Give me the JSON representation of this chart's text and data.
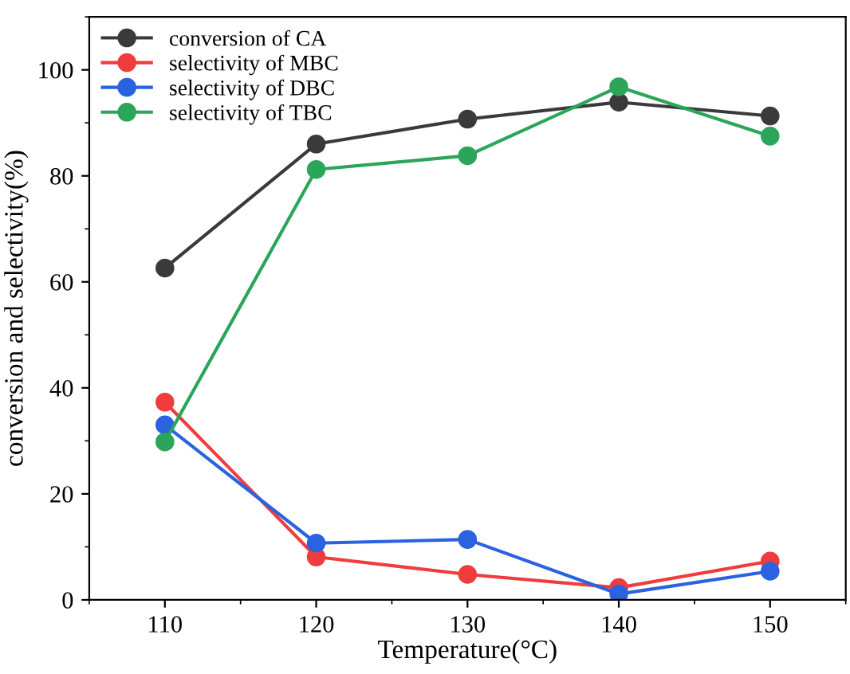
{
  "chart_data": {
    "type": "line",
    "xlabel": "Temperature(°C)",
    "ylabel": "conversion and selectivity(%)",
    "x": [
      110,
      120,
      130,
      140,
      150
    ],
    "series": [
      {
        "name": "conversion of CA",
        "color": "#3a3a3a",
        "values": [
          62.6,
          86.0,
          90.7,
          93.9,
          91.3
        ]
      },
      {
        "name": "selectivity of MBC",
        "color": "#f03c3c",
        "values": [
          37.3,
          8.1,
          4.8,
          2.3,
          7.3
        ]
      },
      {
        "name": "selectivity of DBC",
        "color": "#2a62e0",
        "values": [
          33.0,
          10.7,
          11.4,
          1.1,
          5.4
        ]
      },
      {
        "name": "selectivity of TBC",
        "color": "#2aa55a",
        "values": [
          29.8,
          81.2,
          83.8,
          96.8,
          87.5
        ]
      }
    ],
    "xlim": [
      105,
      155
    ],
    "ylim": [
      0,
      110
    ],
    "xticks": [
      110,
      120,
      130,
      140,
      150
    ],
    "yticks": [
      0,
      20,
      40,
      60,
      80,
      100
    ],
    "marker": "circle",
    "line_style": "solid",
    "legend": "top left",
    "grid": false
  }
}
